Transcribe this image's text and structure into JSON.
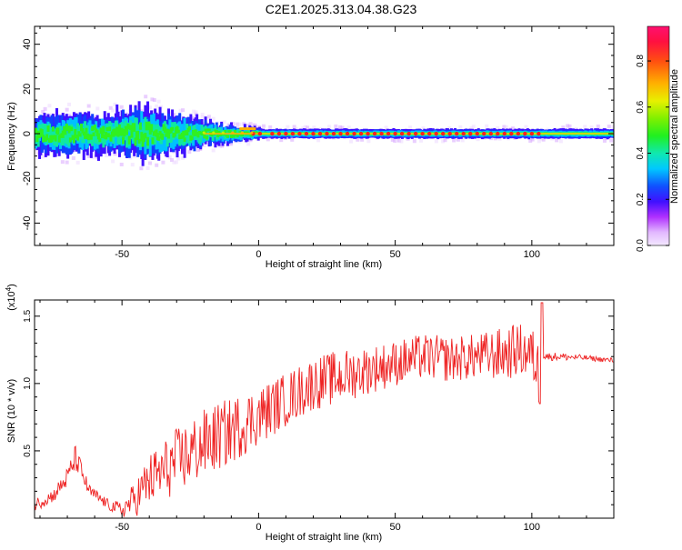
{
  "title": "C2E1.2025.313.04.38.G23",
  "colorbar": {
    "label": "Normalized spectral amplitude",
    "ticks": [
      "0.0",
      "0.2",
      "0.4",
      "0.6",
      "0.8"
    ],
    "tick_values": [
      0.0,
      0.2,
      0.4,
      0.6,
      0.8
    ],
    "range": [
      0,
      0.95
    ]
  },
  "chart_data": [
    {
      "type": "heatmap",
      "xlabel": "Height of straight line (km)",
      "ylabel": "Frequency (Hz)",
      "xlim": [
        -82,
        130
      ],
      "ylim": [
        -50,
        48
      ],
      "xticks": [
        -50,
        0,
        50,
        100
      ],
      "yticks": [
        -40,
        -20,
        0,
        20,
        40
      ],
      "xtick_labels": [
        "-50",
        "0",
        "50",
        "100"
      ],
      "ytick_labels": [
        "-40",
        "-20",
        "0",
        "20",
        "40"
      ],
      "ridge_frequency_hz": 0,
      "peak_band": {
        "height_km": [
          -82,
          130,
          -65,
          -42,
          -30,
          -15,
          0,
          50,
          100
        ],
        "spread_hz": [
          6,
          2,
          6,
          8,
          6,
          3,
          1.5,
          1.5,
          1.5
        ]
      },
      "max_amplitude_points_km": [
        -2,
        5,
        10,
        15,
        20,
        25,
        30,
        35,
        40,
        45,
        50,
        55,
        60,
        65,
        70,
        75,
        80,
        85,
        90,
        95,
        100
      ]
    },
    {
      "type": "line",
      "xlabel": "Height of straight line (km)",
      "ylabel": "SNR (10 * v/v)",
      "y_scale_label": "(x10",
      "y_scale_exponent": "4",
      "xlim": [
        -82,
        130
      ],
      "ylim": [
        0,
        1.62
      ],
      "xticks": [
        -50,
        0,
        50,
        100
      ],
      "yticks": [
        0.5,
        1.0,
        1.5
      ],
      "xtick_labels": [
        "-50",
        "0",
        "50",
        "100"
      ],
      "ytick_labels": [
        "0.5",
        "1.0",
        "1.5"
      ],
      "series": [
        {
          "color": "#ee2222",
          "x": [
            -82,
            -75,
            -70,
            -67,
            -62,
            -55,
            -50,
            -45,
            -40,
            -30,
            -20,
            -10,
            0,
            10,
            20,
            30,
            40,
            50,
            60,
            70,
            80,
            90,
            95,
            100,
            103,
            104,
            110,
            120,
            130
          ],
          "y": [
            0.1,
            0.17,
            0.3,
            0.45,
            0.2,
            0.1,
            0.06,
            0.15,
            0.28,
            0.42,
            0.55,
            0.65,
            0.76,
            0.88,
            1.0,
            1.05,
            1.1,
            1.15,
            1.2,
            1.18,
            1.2,
            1.22,
            1.25,
            1.22,
            1.05,
            1.2,
            1.2,
            1.19,
            1.17
          ],
          "noise_amplitude": [
            0.05,
            0.05,
            0.08,
            0.1,
            0.05,
            0.04,
            0.06,
            0.14,
            0.2,
            0.25,
            0.26,
            0.25,
            0.22,
            0.2,
            0.2,
            0.2,
            0.18,
            0.17,
            0.17,
            0.17,
            0.17,
            0.2,
            0.2,
            0.2,
            0.25,
            0.03,
            0.03,
            0.02,
            0.02
          ]
        }
      ]
    }
  ]
}
